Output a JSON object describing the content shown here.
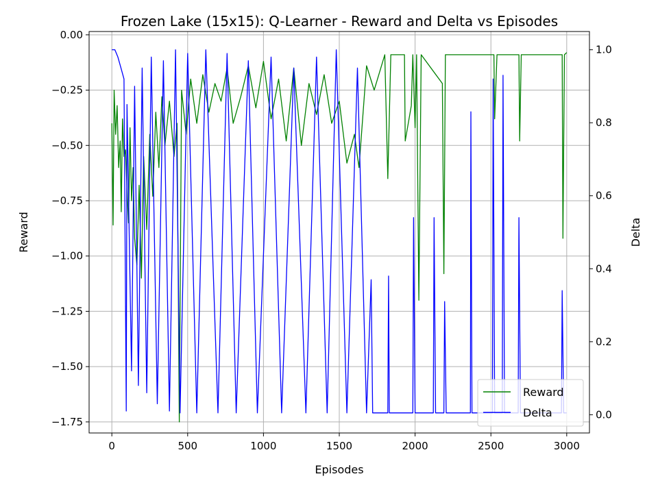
{
  "chart_data": {
    "type": "line",
    "title": "Frozen Lake (15x15): Q-Learner - Reward and Delta vs Episodes",
    "xlabel": "Episodes",
    "ylabel": "Reward",
    "y2label": "Delta",
    "xlim": [
      -150,
      3150
    ],
    "ylim": [
      -1.8,
      0.015
    ],
    "y2lim": [
      -0.05,
      1.05
    ],
    "x_ticks": [
      0,
      500,
      1000,
      1500,
      2000,
      2500,
      3000
    ],
    "y_ticks": [
      0.0,
      -0.25,
      -0.5,
      -0.75,
      -1.0,
      -1.25,
      -1.5,
      -1.75
    ],
    "y_tick_labels": [
      "0.00",
      "−0.25",
      "−0.50",
      "−0.75",
      "−1.00",
      "−1.25",
      "−1.50",
      "−1.75"
    ],
    "y2_ticks": [
      0.0,
      0.2,
      0.4,
      0.6,
      0.8,
      1.0
    ],
    "y2_tick_labels": [
      "0.0",
      "0.2",
      "0.4",
      "0.6",
      "0.8",
      "1.0"
    ],
    "grid": true,
    "legend_position": "lower-right",
    "series": [
      {
        "name": "Reward",
        "axis": "left",
        "color": "#008000",
        "points": [
          [
            0,
            -0.4
          ],
          [
            8,
            -0.86
          ],
          [
            15,
            -0.25
          ],
          [
            25,
            -0.45
          ],
          [
            35,
            -0.32
          ],
          [
            45,
            -0.6
          ],
          [
            55,
            -0.48
          ],
          [
            62,
            -0.8
          ],
          [
            70,
            -0.38
          ],
          [
            80,
            -0.55
          ],
          [
            90,
            -0.52
          ],
          [
            100,
            -0.7
          ],
          [
            110,
            -0.85
          ],
          [
            120,
            -0.42
          ],
          [
            130,
            -0.75
          ],
          [
            140,
            -0.6
          ],
          [
            150,
            -0.92
          ],
          [
            165,
            -1.04
          ],
          [
            180,
            -0.68
          ],
          [
            195,
            -1.1
          ],
          [
            210,
            -0.55
          ],
          [
            230,
            -0.88
          ],
          [
            250,
            -0.45
          ],
          [
            270,
            -0.73
          ],
          [
            290,
            -0.35
          ],
          [
            310,
            -0.6
          ],
          [
            330,
            -0.28
          ],
          [
            350,
            -0.5
          ],
          [
            380,
            -0.3
          ],
          [
            410,
            -0.55
          ],
          [
            430,
            -0.4
          ],
          [
            445,
            -1.75
          ],
          [
            460,
            -0.25
          ],
          [
            490,
            -0.45
          ],
          [
            520,
            -0.2
          ],
          [
            560,
            -0.4
          ],
          [
            600,
            -0.18
          ],
          [
            640,
            -0.35
          ],
          [
            680,
            -0.22
          ],
          [
            720,
            -0.3
          ],
          [
            760,
            -0.15
          ],
          [
            800,
            -0.4
          ],
          [
            850,
            -0.28
          ],
          [
            900,
            -0.14
          ],
          [
            950,
            -0.33
          ],
          [
            1000,
            -0.12
          ],
          [
            1050,
            -0.38
          ],
          [
            1100,
            -0.2
          ],
          [
            1150,
            -0.48
          ],
          [
            1200,
            -0.15
          ],
          [
            1250,
            -0.5
          ],
          [
            1300,
            -0.22
          ],
          [
            1350,
            -0.36
          ],
          [
            1400,
            -0.18
          ],
          [
            1450,
            -0.4
          ],
          [
            1500,
            -0.3
          ],
          [
            1550,
            -0.58
          ],
          [
            1600,
            -0.45
          ],
          [
            1630,
            -0.6
          ],
          [
            1680,
            -0.14
          ],
          [
            1730,
            -0.25
          ],
          [
            1800,
            -0.09
          ],
          [
            1820,
            -0.65
          ],
          [
            1840,
            -0.09
          ],
          [
            1930,
            -0.09
          ],
          [
            1935,
            -0.48
          ],
          [
            1975,
            -0.32
          ],
          [
            1985,
            -0.09
          ],
          [
            2000,
            -0.42
          ],
          [
            2010,
            -0.09
          ],
          [
            2025,
            -1.2
          ],
          [
            2040,
            -0.09
          ],
          [
            2180,
            -0.22
          ],
          [
            2190,
            -1.08
          ],
          [
            2200,
            -0.09
          ],
          [
            2240,
            -0.09
          ],
          [
            2520,
            -0.09
          ],
          [
            2525,
            -0.38
          ],
          [
            2540,
            -0.09
          ],
          [
            2685,
            -0.09
          ],
          [
            2690,
            -0.48
          ],
          [
            2700,
            -0.09
          ],
          [
            2970,
            -0.09
          ],
          [
            2975,
            -0.92
          ],
          [
            2985,
            -0.09
          ],
          [
            3000,
            -0.08
          ]
        ]
      },
      {
        "name": "Delta",
        "axis": "right",
        "color": "#0000ff",
        "points": [
          [
            0,
            1.0
          ],
          [
            20,
            1.0
          ],
          [
            40,
            0.98
          ],
          [
            60,
            0.95
          ],
          [
            80,
            0.92
          ],
          [
            95,
            0.01
          ],
          [
            100,
            0.85
          ],
          [
            130,
            0.12
          ],
          [
            150,
            0.9
          ],
          [
            175,
            0.08
          ],
          [
            200,
            0.95
          ],
          [
            230,
            0.06
          ],
          [
            260,
            0.98
          ],
          [
            300,
            0.03
          ],
          [
            340,
            0.97
          ],
          [
            380,
            0.01
          ],
          [
            420,
            1.0
          ],
          [
            450,
            0.005
          ],
          [
            500,
            0.99
          ],
          [
            560,
            0.005
          ],
          [
            620,
            1.0
          ],
          [
            700,
            0.005
          ],
          [
            760,
            0.99
          ],
          [
            820,
            0.005
          ],
          [
            900,
            0.97
          ],
          [
            960,
            0.005
          ],
          [
            1050,
            0.98
          ],
          [
            1120,
            0.005
          ],
          [
            1200,
            0.95
          ],
          [
            1280,
            0.005
          ],
          [
            1350,
            0.98
          ],
          [
            1420,
            0.005
          ],
          [
            1480,
            1.0
          ],
          [
            1550,
            0.005
          ],
          [
            1620,
            0.95
          ],
          [
            1680,
            0.005
          ],
          [
            1710,
            0.37
          ],
          [
            1720,
            0.005
          ],
          [
            1820,
            0.005
          ],
          [
            1825,
            0.38
          ],
          [
            1830,
            0.005
          ],
          [
            1985,
            0.005
          ],
          [
            1990,
            0.54
          ],
          [
            2000,
            0.005
          ],
          [
            2120,
            0.005
          ],
          [
            2125,
            0.54
          ],
          [
            2135,
            0.005
          ],
          [
            2190,
            0.005
          ],
          [
            2195,
            0.31
          ],
          [
            2205,
            0.005
          ],
          [
            2365,
            0.005
          ],
          [
            2368,
            0.83
          ],
          [
            2375,
            0.005
          ],
          [
            2510,
            0.005
          ],
          [
            2515,
            0.92
          ],
          [
            2525,
            0.005
          ],
          [
            2575,
            0.005
          ],
          [
            2580,
            0.93
          ],
          [
            2590,
            0.005
          ],
          [
            2680,
            0.005
          ],
          [
            2685,
            0.54
          ],
          [
            2695,
            0.005
          ],
          [
            2965,
            0.005
          ],
          [
            2970,
            0.34
          ],
          [
            2980,
            0.005
          ],
          [
            3000,
            0.005
          ]
        ]
      }
    ]
  }
}
